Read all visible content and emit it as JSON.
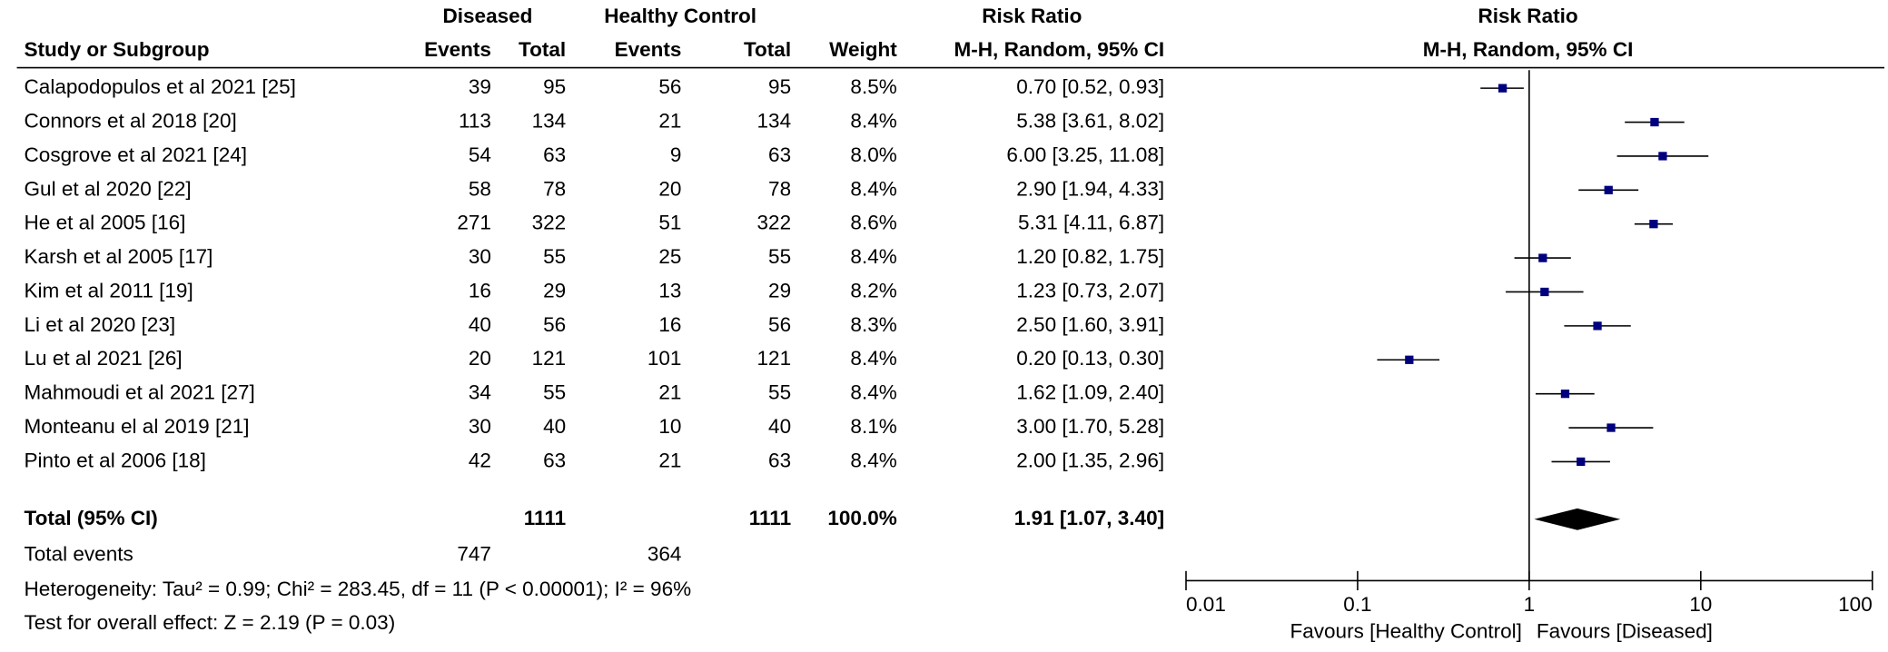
{
  "table": {
    "header": {
      "diseased": "Diseased",
      "healthy": "Healthy Control",
      "risk_ratio": "Risk Ratio",
      "columns": [
        "Study or Subgroup",
        "Events",
        "Total",
        "Events",
        "Total",
        "Weight",
        "M-H, Random, 95% CI"
      ]
    },
    "rows": [
      [
        "Calapodopulos et al 2021 [25]",
        39,
        95,
        56,
        95,
        "8.5%"
      ],
      [
        "Connors et al 2018 [20]",
        113,
        134,
        21,
        134,
        "8.4%"
      ],
      [
        "Cosgrove et al 2021 [24]",
        54,
        63,
        9,
        63,
        "8.0%"
      ],
      [
        "Gul et al 2020 [22]",
        58,
        78,
        20,
        78,
        "8.4%"
      ],
      [
        "He et al 2005 [16]",
        271,
        322,
        51,
        322,
        "8.6%"
      ],
      [
        "Karsh et al 2005 [17]",
        30,
        55,
        25,
        55,
        "8.4%"
      ],
      [
        "Kim et al 2011 [19]",
        16,
        29,
        13,
        29,
        "8.2%"
      ],
      [
        "Li et al 2020 [23]",
        40,
        56,
        16,
        56,
        "8.3%"
      ],
      [
        "Lu et al 2021 [26]",
        20,
        121,
        101,
        121,
        "8.4%"
      ],
      [
        "Mahmoudi et al 2021 [27]",
        34,
        55,
        21,
        55,
        "8.4%"
      ],
      [
        "Monteanu el al 2019 [21]",
        30,
        40,
        10,
        40,
        "8.1%"
      ],
      [
        "Pinto et al 2006 [18]",
        42,
        63,
        21,
        63,
        "8.4%"
      ]
    ],
    "total": [
      "Total (95% CI)",
      1111,
      1111,
      "100.0%"
    ],
    "total_events": [
      "Total events",
      747,
      364
    ],
    "heterogeneity": "Heterogeneity: Tau² = 0.99; Chi² = 283.45, df = 11 (P < 0.00001); I² = 96%",
    "overall_effect": "Test for overall effect: Z = 2.19 (P = 0.03)"
  },
  "chart_data": {
    "type": "forest",
    "title": "Risk Ratio",
    "subtitle": "M-H, Random, 95% CI",
    "values": [
      0.7,
      5.38,
      6.0,
      2.9,
      5.31,
      1.2,
      1.23,
      2.5,
      0.2,
      1.62,
      3.0,
      2.0
    ],
    "ci_low": [
      0.52,
      3.61,
      3.25,
      1.94,
      4.11,
      0.82,
      0.73,
      1.6,
      0.13,
      1.09,
      1.7,
      1.35
    ],
    "ci_high": [
      0.93,
      8.02,
      11.08,
      4.33,
      6.87,
      1.75,
      2.07,
      3.91,
      0.3,
      2.4,
      5.28,
      2.96
    ],
    "value_labels": [
      "0.70 [0.52, 0.93]",
      "5.38 [3.61, 8.02]",
      "6.00 [3.25, 11.08]",
      "2.90 [1.94, 4.33]",
      "5.31 [4.11, 6.87]",
      "1.20 [0.82, 1.75]",
      "1.23 [0.73, 2.07]",
      "2.50 [1.60, 3.91]",
      "0.20 [0.13, 0.30]",
      "1.62 [1.09, 2.40]",
      "3.00 [1.70, 5.28]",
      "2.00 [1.35, 2.96]"
    ],
    "total": 1.91,
    "total_ci_low": 1.07,
    "total_ci_high": 3.4,
    "total_label": "1.91 [1.07, 3.40]",
    "xlim": [
      0.01,
      100
    ],
    "xticks": [
      0.01,
      0.1,
      1,
      10,
      100
    ],
    "log_scale": true,
    "xlabel_left": "Favours [Healthy Control]",
    "xlabel_right": "Favours [Diseased]",
    "color": "#00007f"
  }
}
